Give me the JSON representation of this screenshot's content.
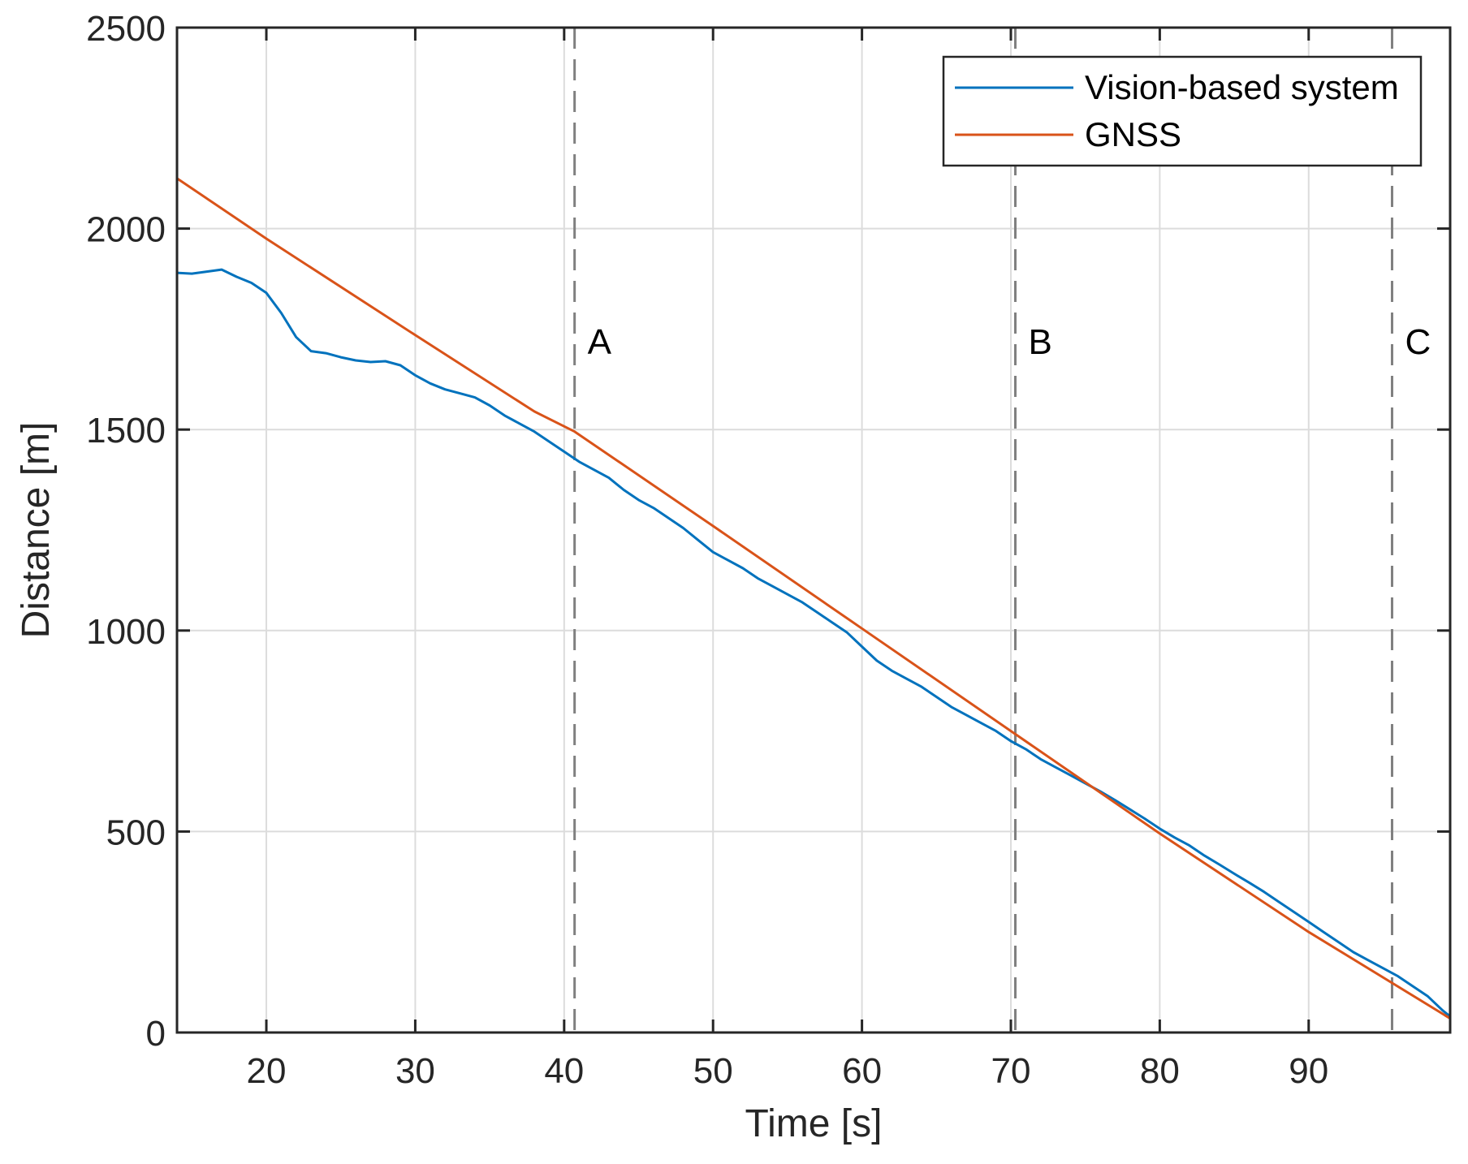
{
  "chart_data": {
    "type": "line",
    "title": "",
    "xlabel": "Time [s]",
    "ylabel": "Distance [m]",
    "xlim": [
      14,
      99.5
    ],
    "ylim": [
      0,
      2500
    ],
    "grid": true,
    "legend_position": "top-right",
    "xticks": [
      20,
      30,
      40,
      50,
      60,
      70,
      80,
      90
    ],
    "yticks": [
      0,
      500,
      1000,
      1500,
      2000,
      2500
    ],
    "xtick_labels": [
      "20",
      "30",
      "40",
      "50",
      "60",
      "70",
      "80",
      "90"
    ],
    "ytick_labels": [
      "0",
      "500",
      "1000",
      "1500",
      "2000",
      "2500"
    ],
    "vertical_markers": [
      {
        "label": "A",
        "x": 40.7
      },
      {
        "label": "B",
        "x": 70.3
      },
      {
        "label": "C",
        "x": 95.6
      }
    ],
    "series": [
      {
        "name": "Vision-based system",
        "color": "#0072BD",
        "x": [
          14,
          15,
          16,
          17,
          18,
          19,
          20,
          21,
          22,
          23,
          24,
          25,
          26,
          27,
          28,
          29,
          30,
          31,
          32,
          33,
          34,
          35,
          36,
          37,
          38,
          39,
          40,
          41,
          42,
          43,
          44,
          45,
          46,
          47,
          48,
          49,
          50,
          51,
          52,
          53,
          54,
          55,
          56,
          57,
          58,
          59,
          60,
          61,
          62,
          63,
          64,
          65,
          66,
          67,
          68,
          69,
          70,
          71,
          72,
          73,
          74,
          75,
          76,
          77,
          78,
          79,
          80,
          81,
          82,
          83,
          84,
          85,
          86,
          87,
          88,
          89,
          90,
          91,
          92,
          93,
          94,
          95,
          96,
          97,
          98,
          99,
          99.5
        ],
        "y": [
          1890,
          1888,
          1893,
          1898,
          1880,
          1865,
          1840,
          1790,
          1730,
          1695,
          1690,
          1680,
          1672,
          1668,
          1670,
          1660,
          1635,
          1615,
          1600,
          1590,
          1580,
          1560,
          1535,
          1515,
          1495,
          1470,
          1445,
          1420,
          1400,
          1380,
          1350,
          1325,
          1305,
          1280,
          1255,
          1225,
          1195,
          1175,
          1155,
          1130,
          1110,
          1090,
          1070,
          1045,
          1020,
          995,
          960,
          925,
          900,
          880,
          860,
          835,
          810,
          790,
          770,
          750,
          725,
          705,
          680,
          660,
          640,
          620,
          600,
          578,
          555,
          532,
          507,
          485,
          465,
          440,
          418,
          395,
          373,
          350,
          325,
          300,
          275,
          250,
          225,
          200,
          180,
          160,
          140,
          115,
          90,
          55,
          40
        ]
      },
      {
        "name": "GNSS",
        "color": "#D95319",
        "x": [
          14,
          20,
          30,
          38,
          40.7,
          50,
          60,
          70,
          80,
          90,
          99.5
        ],
        "y": [
          2125,
          1975,
          1735,
          1545,
          1495,
          1260,
          1005,
          750,
          495,
          250,
          35
        ]
      }
    ]
  },
  "styles": {
    "grid_color": "#dcdcdc",
    "axis_color": "#262626",
    "marker_line_color": "#808080"
  }
}
